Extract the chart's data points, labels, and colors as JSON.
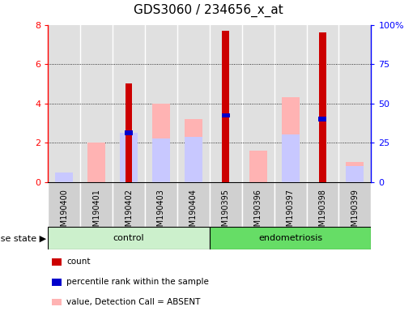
{
  "title": "GDS3060 / 234656_x_at",
  "samples": [
    "GSM190400",
    "GSM190401",
    "GSM190402",
    "GSM190403",
    "GSM190404",
    "GSM190395",
    "GSM190396",
    "GSM190397",
    "GSM190398",
    "GSM190399"
  ],
  "count": [
    0,
    0,
    5.0,
    0,
    0,
    7.7,
    0,
    0,
    7.6,
    0
  ],
  "percentile_rank": [
    0,
    0,
    2.5,
    0,
    0,
    3.4,
    0,
    0,
    3.2,
    0
  ],
  "value_absent": [
    0.5,
    2.0,
    0,
    4.0,
    3.2,
    0,
    1.6,
    4.3,
    0,
    1.0
  ],
  "rank_absent": [
    0.5,
    0,
    2.5,
    2.2,
    2.3,
    0,
    0,
    2.4,
    0,
    0.8
  ],
  "ylim_left": [
    0,
    8
  ],
  "ylim_right": [
    0,
    100
  ],
  "yticks_left": [
    0,
    2,
    4,
    6,
    8
  ],
  "yticks_right": [
    0,
    25,
    50,
    75,
    100
  ],
  "ytick_labels_right": [
    "0",
    "25",
    "50",
    "75",
    "100%"
  ],
  "color_count": "#cc0000",
  "color_percentile": "#0000cc",
  "color_value_absent": "#ffb3b3",
  "color_rank_absent": "#c8c8ff",
  "bg_plot": "#e0e0e0",
  "bg_xtick": "#d0d0d0",
  "bg_control": "#ccf0cc",
  "bg_endometriosis": "#66dd66",
  "group_label": "disease state",
  "legend_items": [
    {
      "label": "count",
      "color": "#cc0000"
    },
    {
      "label": "percentile rank within the sample",
      "color": "#0000cc"
    },
    {
      "label": "value, Detection Call = ABSENT",
      "color": "#ffb3b3"
    },
    {
      "label": "rank, Detection Call = ABSENT",
      "color": "#c8c8ff"
    }
  ],
  "control_n": 5,
  "endo_n": 5
}
